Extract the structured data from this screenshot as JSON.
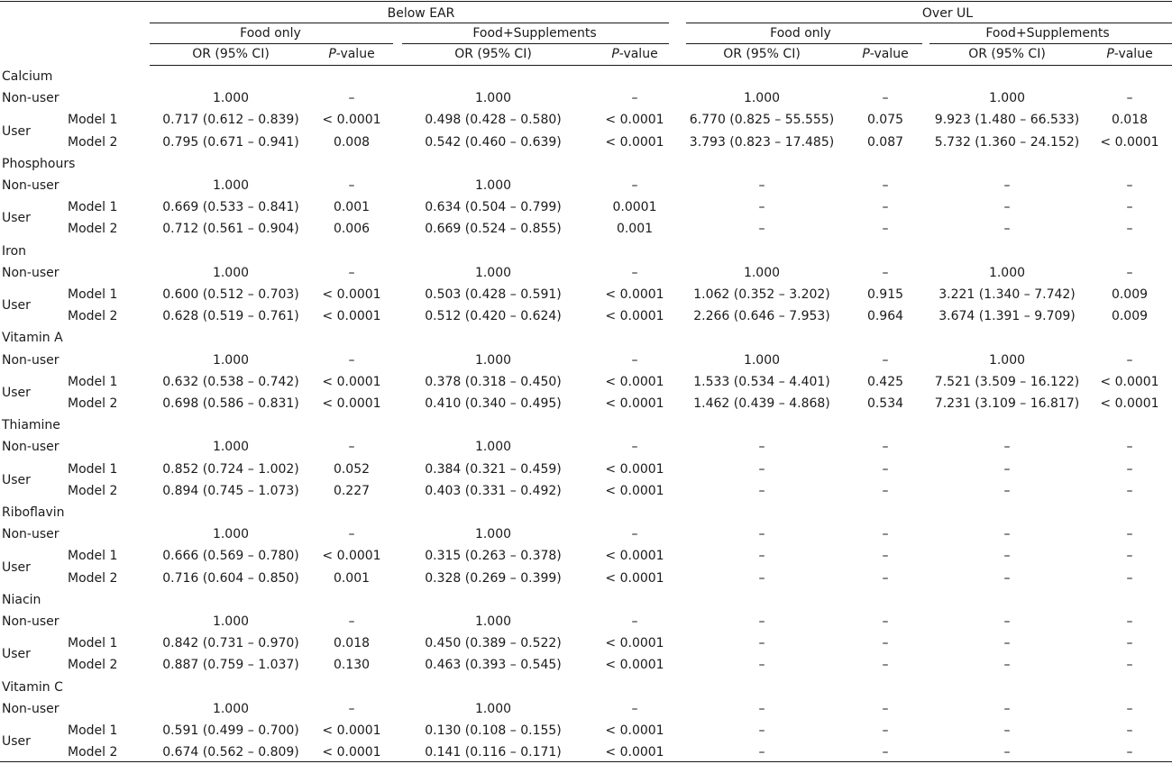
{
  "header": {
    "group_below": "Below EAR",
    "group_over": "Over UL",
    "sub_food": "Food only",
    "sub_supp": "Food+Supplements",
    "or": "OR (95% CI)",
    "p_letter": "P",
    "p_suffix": "-value"
  },
  "nonuser_label": "Non-user",
  "user_label": "User",
  "sections": [
    {
      "name": "Calcium",
      "nonuser": [
        "1.000",
        "–",
        "1.000",
        "–",
        "1.000",
        "–",
        "1.000",
        "–"
      ],
      "models": [
        {
          "label": "Model 1",
          "cells": [
            "0.717 (0.612 – 0.839)",
            "< 0.0001",
            "0.498 (0.428 – 0.580)",
            "< 0.0001",
            "6.770 (0.825 – 55.555)",
            "0.075",
            "9.923 (1.480 – 66.533)",
            "0.018"
          ]
        },
        {
          "label": "Model 2",
          "cells": [
            "0.795 (0.671 – 0.941)",
            "0.008",
            "0.542 (0.460 – 0.639)",
            "< 0.0001",
            "3.793 (0.823 – 17.485)",
            "0.087",
            "5.732 (1.360 – 24.152)",
            "< 0.0001"
          ]
        }
      ]
    },
    {
      "name": "Phosphours",
      "nonuser": [
        "1.000",
        "–",
        "1.000",
        "–",
        "–",
        "–",
        "–",
        "–"
      ],
      "models": [
        {
          "label": "Model 1",
          "cells": [
            "0.669 (0.533 – 0.841)",
            "0.001",
            "0.634 (0.504 – 0.799)",
            "0.0001",
            "–",
            "–",
            "–",
            "–"
          ]
        },
        {
          "label": "Model 2",
          "cells": [
            "0.712 (0.561 – 0.904)",
            "0.006",
            "0.669 (0.524 – 0.855)",
            "0.001",
            "–",
            "–",
            "–",
            "–"
          ]
        }
      ]
    },
    {
      "name": "Iron",
      "nonuser": [
        "1.000",
        "–",
        "1.000",
        "–",
        "1.000",
        "–",
        "1.000",
        "–"
      ],
      "models": [
        {
          "label": "Model 1",
          "cells": [
            "0.600 (0.512 – 0.703)",
            "< 0.0001",
            "0.503 (0.428 – 0.591)",
            "< 0.0001",
            "1.062 (0.352 – 3.202)",
            "0.915",
            "3.221 (1.340 – 7.742)",
            "0.009"
          ]
        },
        {
          "label": "Model 2",
          "cells": [
            "0.628 (0.519 – 0.761)",
            "< 0.0001",
            "0.512 (0.420 – 0.624)",
            "< 0.0001",
            "2.266 (0.646 – 7.953)",
            "0.964",
            "3.674 (1.391 – 9.709)",
            "0.009"
          ]
        }
      ]
    },
    {
      "name": "Vitamin A",
      "nonuser": [
        "1.000",
        "–",
        "1.000",
        "–",
        "1.000",
        "–",
        "1.000",
        "–"
      ],
      "models": [
        {
          "label": "Model 1",
          "cells": [
            "0.632 (0.538 – 0.742)",
            "< 0.0001",
            "0.378 (0.318 – 0.450)",
            "< 0.0001",
            "1.533 (0.534 – 4.401)",
            "0.425",
            "7.521 (3.509 – 16.122)",
            "< 0.0001"
          ]
        },
        {
          "label": "Model 2",
          "cells": [
            "0.698 (0.586 – 0.831)",
            "< 0.0001",
            "0.410 (0.340 – 0.495)",
            "< 0.0001",
            "1.462 (0.439 – 4.868)",
            "0.534",
            "7.231 (3.109 – 16.817)",
            "< 0.0001"
          ]
        }
      ]
    },
    {
      "name": "Thiamine",
      "nonuser": [
        "1.000",
        "–",
        "1.000",
        "–",
        "–",
        "–",
        "–",
        "–"
      ],
      "models": [
        {
          "label": "Model 1",
          "cells": [
            "0.852 (0.724 – 1.002)",
            "0.052",
            "0.384 (0.321 – 0.459)",
            "< 0.0001",
            "–",
            "–",
            "–",
            "–"
          ]
        },
        {
          "label": "Model 2",
          "cells": [
            "0.894 (0.745 – 1.073)",
            "0.227",
            "0.403 (0.331 – 0.492)",
            "< 0.0001",
            "–",
            "–",
            "–",
            "–"
          ]
        }
      ]
    },
    {
      "name": "Riboflavin",
      "nonuser": [
        "1.000",
        "–",
        "1.000",
        "–",
        "–",
        "–",
        "–",
        "–"
      ],
      "models": [
        {
          "label": "Model 1",
          "cells": [
            "0.666 (0.569 – 0.780)",
            "< 0.0001",
            "0.315 (0.263 – 0.378)",
            "< 0.0001",
            "–",
            "–",
            "–",
            "–"
          ]
        },
        {
          "label": "Model 2",
          "cells": [
            "0.716 (0.604 – 0.850)",
            "0.001",
            "0.328 (0.269 – 0.399)",
            "< 0.0001",
            "–",
            "–",
            "–",
            "–"
          ]
        }
      ]
    },
    {
      "name": "Niacin",
      "nonuser": [
        "1.000",
        "–",
        "1.000",
        "–",
        "–",
        "–",
        "–",
        "–"
      ],
      "models": [
        {
          "label": "Model 1",
          "cells": [
            "0.842 (0.731 – 0.970)",
            "0.018",
            "0.450 (0.389 – 0.522)",
            "< 0.0001",
            "–",
            "–",
            "–",
            "–"
          ]
        },
        {
          "label": "Model 2",
          "cells": [
            "0.887 (0.759 – 1.037)",
            "0.130",
            "0.463 (0.393 – 0.545)",
            "< 0.0001",
            "–",
            "–",
            "–",
            "–"
          ]
        }
      ]
    },
    {
      "name": "Vitamin C",
      "nonuser": [
        "1.000",
        "–",
        "1.000",
        "–",
        "–",
        "–",
        "–",
        "–"
      ],
      "models": [
        {
          "label": "Model 1",
          "cells": [
            "0.591 (0.499 – 0.700)",
            "< 0.0001",
            "0.130 (0.108 – 0.155)",
            "< 0.0001",
            "–",
            "–",
            "–",
            "–"
          ]
        },
        {
          "label": "Model 2",
          "cells": [
            "0.674 (0.562 – 0.809)",
            "< 0.0001",
            "0.141 (0.116 – 0.171)",
            "< 0.0001",
            "–",
            "–",
            "–",
            "–"
          ]
        }
      ]
    }
  ]
}
